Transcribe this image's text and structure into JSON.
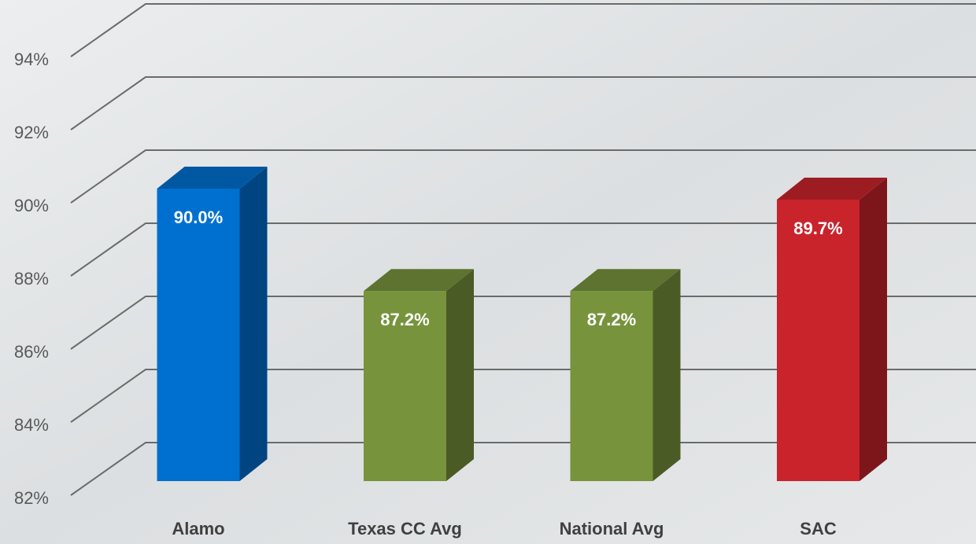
{
  "chart_data": {
    "type": "bar3d",
    "categories": [
      "Alamo",
      "Texas CC Avg",
      "National Avg",
      "SAC"
    ],
    "values": [
      90.0,
      87.2,
      87.2,
      89.7
    ],
    "value_labels": [
      "90.0%",
      "87.2%",
      "87.2%",
      "89.7%"
    ],
    "colors": [
      "#0070d0",
      "#77933c",
      "#77933c",
      "#c9242c"
    ],
    "ylim": [
      82,
      94
    ],
    "yticks": [
      {
        "value": 82,
        "label": "82%"
      },
      {
        "value": 84,
        "label": "84%"
      },
      {
        "value": 86,
        "label": "86%"
      },
      {
        "value": 88,
        "label": "88%"
      },
      {
        "value": 90,
        "label": "90%"
      },
      {
        "value": 92,
        "label": "92%"
      },
      {
        "value": 94,
        "label": "94%"
      }
    ],
    "grid": true
  }
}
